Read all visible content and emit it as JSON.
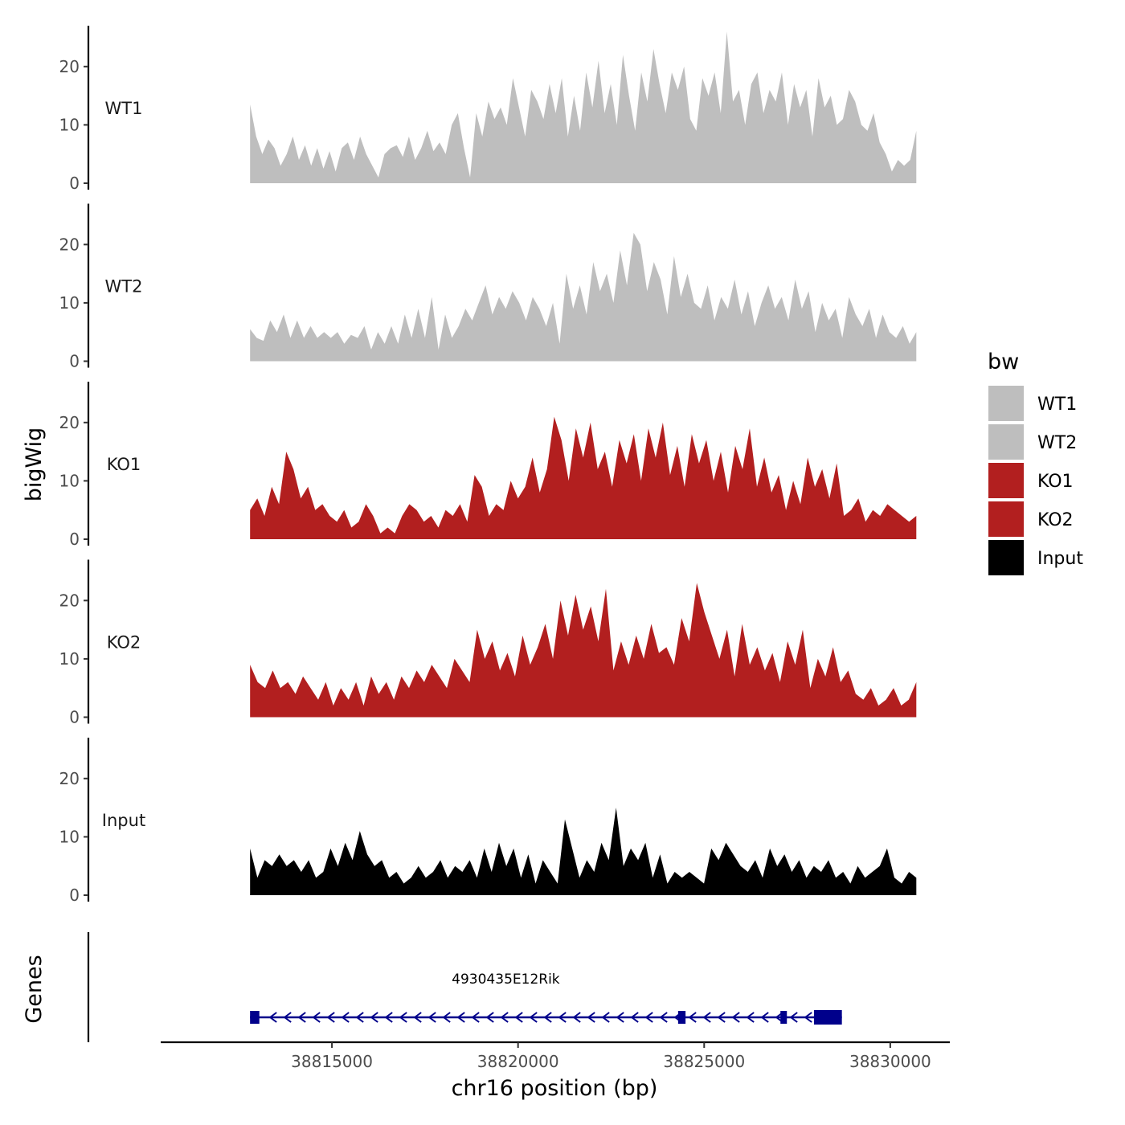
{
  "chart_data": {
    "type": "area",
    "chromosome": "chr16",
    "xlabel": "chr16 position (bp)",
    "ylabel": "bigWig",
    "xlim": [
      38810400,
      38831600
    ],
    "data_range": [
      38812800,
      38830700
    ],
    "ylim": [
      0,
      27
    ],
    "y_ticks": [
      0,
      10,
      20
    ],
    "x_ticks": [
      38815000,
      38820000,
      38825000,
      38830000
    ],
    "x_tick_labels": [
      "38815000",
      "38820000",
      "38825000",
      "38830000"
    ],
    "legend": {
      "title": "bw",
      "position": "right",
      "items": [
        {
          "label": "WT1",
          "color": "#bebebe"
        },
        {
          "label": "WT2",
          "color": "#bebebe"
        },
        {
          "label": "KO1",
          "color": "#b21f1f"
        },
        {
          "label": "KO2",
          "color": "#b21f1f"
        },
        {
          "label": "Input",
          "color": "#000000"
        }
      ]
    },
    "series": [
      {
        "name": "WT1",
        "color": "#bebebe",
        "values": [
          13.5,
          8,
          5,
          7.5,
          6,
          3,
          5,
          8,
          4,
          6.5,
          3,
          6,
          2.5,
          5.5,
          2,
          6,
          7,
          4,
          8,
          5,
          3,
          1,
          5,
          6,
          6.5,
          4.5,
          8,
          4,
          6,
          9,
          5.5,
          7,
          5,
          10,
          12,
          6,
          1,
          12,
          8,
          14,
          11,
          13,
          10,
          18,
          13,
          8,
          16,
          14,
          11,
          17,
          12,
          18,
          8,
          15,
          9,
          19,
          13,
          21,
          12,
          17,
          10,
          22,
          15,
          9,
          19,
          14,
          23,
          17,
          12,
          19,
          16,
          20,
          11,
          9,
          18,
          15,
          19,
          12,
          26,
          14,
          16,
          10,
          17,
          19,
          12,
          16,
          14,
          19,
          10,
          17,
          13,
          16,
          8,
          18,
          13,
          15,
          10,
          11,
          16,
          14,
          10,
          9,
          12,
          7,
          5,
          2,
          4,
          3,
          4,
          9
        ]
      },
      {
        "name": "WT2",
        "color": "#bebebe",
        "values": [
          5.5,
          4,
          3.5,
          7,
          5,
          8,
          4,
          7,
          4,
          6,
          4,
          5,
          4,
          5,
          3,
          4.5,
          4,
          6,
          2,
          5,
          3,
          6,
          3,
          8,
          4,
          9,
          4,
          11,
          2,
          8,
          4,
          6,
          9,
          7,
          10,
          13,
          8,
          11,
          9,
          12,
          10,
          7,
          11,
          9,
          6,
          10,
          3,
          15,
          9,
          13,
          8,
          17,
          12,
          15,
          10,
          19,
          13,
          22,
          20,
          12,
          17,
          14,
          8,
          18,
          11,
          15,
          10,
          9,
          13,
          7,
          11,
          9,
          14,
          8,
          12,
          6,
          10,
          13,
          9,
          11,
          7,
          14,
          9,
          12,
          5,
          10,
          7,
          9,
          4,
          11,
          8,
          6,
          9,
          4,
          8,
          5,
          4,
          6,
          3,
          5
        ]
      },
      {
        "name": "KO1",
        "color": "#b21f1f",
        "values": [
          5,
          7,
          4,
          9,
          6,
          15,
          12,
          7,
          9,
          5,
          6,
          4,
          3,
          5,
          2,
          3,
          6,
          4,
          1,
          2,
          1,
          4,
          6,
          5,
          3,
          4,
          2,
          5,
          4,
          6,
          3,
          11,
          9,
          4,
          6,
          5,
          10,
          7,
          9,
          14,
          8,
          12,
          21,
          17,
          10,
          19,
          14,
          20,
          12,
          15,
          9,
          17,
          13,
          18,
          10,
          19,
          14,
          20,
          11,
          16,
          9,
          18,
          13,
          17,
          10,
          15,
          8,
          16,
          12,
          19,
          9,
          14,
          8,
          11,
          5,
          10,
          6,
          14,
          9,
          12,
          7,
          13,
          4,
          5,
          7,
          3,
          5,
          4,
          6,
          5,
          4,
          3,
          4
        ]
      },
      {
        "name": "KO2",
        "color": "#b21f1f",
        "values": [
          9,
          6,
          5,
          8,
          5,
          6,
          4,
          7,
          5,
          3,
          6,
          2,
          5,
          3,
          6,
          2,
          7,
          4,
          6,
          3,
          7,
          5,
          8,
          6,
          9,
          7,
          5,
          10,
          8,
          6,
          15,
          10,
          13,
          8,
          11,
          7,
          14,
          9,
          12,
          16,
          10,
          20,
          14,
          21,
          15,
          19,
          13,
          22,
          8,
          13,
          9,
          14,
          10,
          16,
          11,
          12,
          9,
          17,
          13,
          23,
          18,
          14,
          10,
          15,
          7,
          16,
          9,
          12,
          8,
          11,
          6,
          13,
          9,
          15,
          5,
          10,
          7,
          12,
          6,
          8,
          4,
          3,
          5,
          2,
          3,
          5,
          2,
          3,
          6
        ]
      },
      {
        "name": "Input",
        "color": "#000000",
        "values": [
          8,
          3,
          6,
          5,
          7,
          5,
          6,
          4,
          6,
          3,
          4,
          8,
          5,
          9,
          6,
          11,
          7,
          5,
          6,
          3,
          4,
          2,
          3,
          5,
          3,
          4,
          6,
          3,
          5,
          4,
          6,
          3,
          8,
          4,
          9,
          5,
          8,
          3,
          7,
          2,
          6,
          4,
          2,
          13,
          8,
          3,
          6,
          4,
          9,
          6,
          15,
          5,
          8,
          6,
          9,
          3,
          7,
          2,
          4,
          3,
          4,
          3,
          2,
          8,
          6,
          9,
          7,
          5,
          4,
          6,
          3,
          8,
          5,
          7,
          4,
          6,
          3,
          5,
          4,
          6,
          3,
          4,
          2,
          5,
          3,
          4,
          5,
          8,
          3,
          2,
          4,
          3
        ]
      }
    ],
    "gene_track": {
      "ylabel": "Genes",
      "gene": "4930435E12Rik",
      "strand": "-",
      "start": 38812800,
      "end": 38828700,
      "exons": [
        {
          "start": 38812800,
          "end": 38813050
        },
        {
          "start": 38824300,
          "end": 38824500
        },
        {
          "start": 38827050,
          "end": 38827200
        },
        {
          "start": 38827950,
          "end": 38828700
        }
      ],
      "color": "#00008b"
    }
  }
}
